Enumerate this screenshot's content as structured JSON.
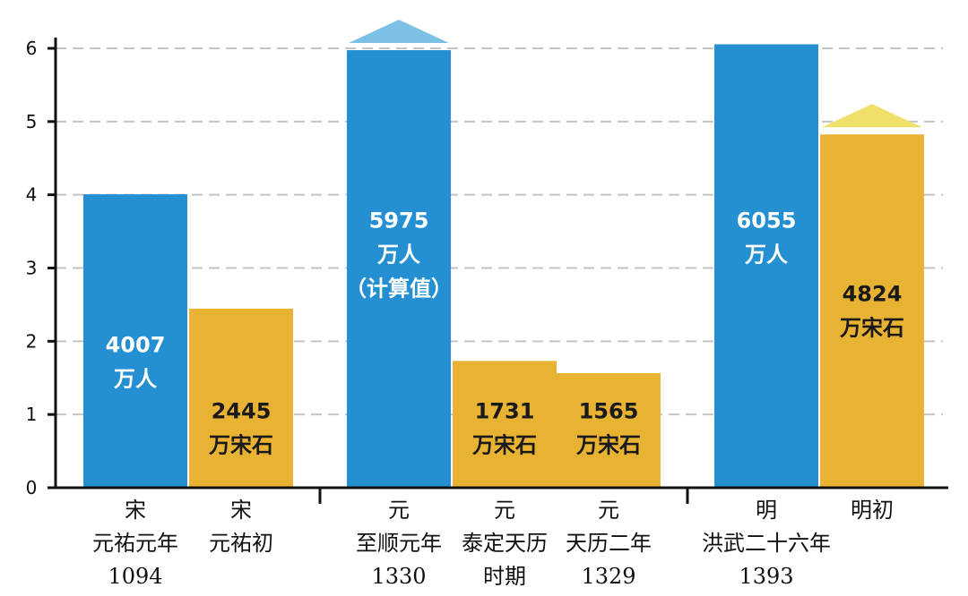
{
  "chart_data": {
    "type": "bar",
    "ylim": [
      0,
      6
    ],
    "yticks": [
      0,
      1,
      2,
      3,
      4,
      5,
      6
    ],
    "grid": true,
    "colors": {
      "population": "#2590d1",
      "grain": "#e8b233",
      "text_on_blue": "#ffffff",
      "text_on_gold": "#1a1a1a",
      "arrow_blue": "#7cc0e6",
      "arrow_gold": "#f0e06a"
    },
    "bars": [
      {
        "series": "population",
        "value": 4.007,
        "label_lines": [
          "4007",
          "万人"
        ],
        "label_at": 1.85
      },
      {
        "series": "grain",
        "value": 2.445,
        "label_lines": [
          "2445",
          "万宋石"
        ],
        "label_at": 0.95
      },
      {
        "series": "population",
        "value": 5.975,
        "label_lines": [
          "5975",
          "万人",
          "（计算值）"
        ],
        "label_at": 3.55,
        "arrow": true
      },
      {
        "series": "grain",
        "value": 1.731,
        "label_lines": [
          "1731",
          "万宋石"
        ],
        "label_at": 0.95
      },
      {
        "series": "grain",
        "value": 1.565,
        "label_lines": [
          "1565",
          "万宋石"
        ],
        "label_at": 0.95
      },
      {
        "series": "population",
        "value": 6.055,
        "label_lines": [
          "6055",
          "万人"
        ],
        "label_at": 3.55
      },
      {
        "series": "grain",
        "value": 4.824,
        "label_lines": [
          "4824",
          "万宋石"
        ],
        "label_at": 2.55,
        "arrow": true
      }
    ],
    "categories": [
      {
        "bar": 0,
        "lines": [
          "宋",
          "元祐元年",
          "1094"
        ]
      },
      {
        "bar": 1,
        "lines": [
          "宋",
          "元祐初"
        ]
      },
      {
        "bar": 2,
        "lines": [
          "元",
          "至顺元年",
          "1330"
        ]
      },
      {
        "bar": 3,
        "lines": [
          "元",
          "泰定天历",
          "时期"
        ]
      },
      {
        "bar": 4,
        "lines": [
          "元",
          "天历二年",
          "1329"
        ]
      },
      {
        "bar": 5,
        "lines": [
          "明",
          "洪武二十六年",
          "1393"
        ]
      },
      {
        "bar": 6,
        "lines": [
          "明初"
        ]
      }
    ]
  }
}
